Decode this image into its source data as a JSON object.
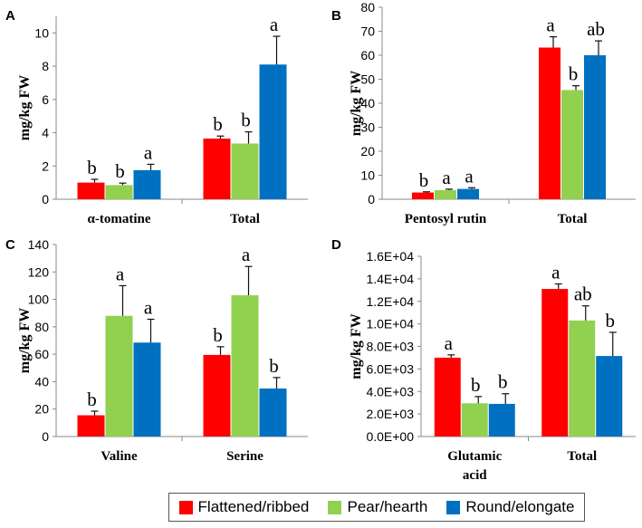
{
  "colors": {
    "flattened": "#ff0000",
    "pear": "#92d050",
    "round": "#0070c0"
  },
  "legend": {
    "items": [
      {
        "label": "Flattened/ribbed",
        "color": "#ff0000"
      },
      {
        "label": "Pear/hearth",
        "color": "#92d050"
      },
      {
        "label": "Round/elongate",
        "color": "#0070c0"
      }
    ]
  },
  "chart_data": [
    {
      "panel": "A",
      "type": "bar",
      "ylabel": "mg/kg FW",
      "ylim": [
        0,
        11
      ],
      "yticks": [
        0,
        2,
        4,
        6,
        8,
        10
      ],
      "ytick_labels": [
        "0",
        "2",
        "4",
        "6",
        "8",
        "10"
      ],
      "categories": [
        "α-tomatine",
        "Total"
      ],
      "series": [
        {
          "name": "Flattened/ribbed",
          "values": [
            1.0,
            3.65
          ],
          "errors": [
            0.2,
            0.15
          ],
          "letters": [
            "b",
            "b"
          ]
        },
        {
          "name": "Pear/hearth",
          "values": [
            0.85,
            3.35
          ],
          "errors": [
            0.12,
            0.7
          ],
          "letters": [
            "b",
            "b"
          ]
        },
        {
          "name": "Round/elongate",
          "values": [
            1.75,
            8.1
          ],
          "errors": [
            0.35,
            1.7
          ],
          "letters": [
            "a",
            "a"
          ]
        }
      ]
    },
    {
      "panel": "B",
      "type": "bar",
      "ylabel": "mg/kg FW",
      "ylim": [
        0,
        80
      ],
      "yticks": [
        0,
        10,
        20,
        30,
        40,
        50,
        60,
        70,
        80
      ],
      "ytick_labels": [
        "0",
        "10",
        "20",
        "30",
        "40",
        "50",
        "60",
        "70",
        "80"
      ],
      "categories": [
        "Pentosyl rutin",
        "Total"
      ],
      "series": [
        {
          "name": "Flattened/ribbed",
          "values": [
            2.8,
            63.2
          ],
          "errors": [
            0.3,
            4.5
          ],
          "letters": [
            "b",
            "a"
          ]
        },
        {
          "name": "Pear/hearth",
          "values": [
            3.8,
            45.5
          ],
          "errors": [
            0.4,
            1.8
          ],
          "letters": [
            "a",
            "b"
          ]
        },
        {
          "name": "Round/elongate",
          "values": [
            4.3,
            60.0
          ],
          "errors": [
            0.5,
            6.0
          ],
          "letters": [
            "a",
            "ab"
          ]
        }
      ]
    },
    {
      "panel": "C",
      "type": "bar",
      "ylabel": "mg/kg FW",
      "ylim": [
        0,
        140
      ],
      "yticks": [
        0,
        20,
        40,
        60,
        80,
        100,
        120,
        140
      ],
      "ytick_labels": [
        "0",
        "20",
        "40",
        "60",
        "80",
        "100",
        "120",
        "140"
      ],
      "categories": [
        "Valine",
        "Serine"
      ],
      "series": [
        {
          "name": "Flattened/ribbed",
          "values": [
            15.5,
            59.5
          ],
          "errors": [
            3.0,
            6.0
          ],
          "letters": [
            "b",
            "b"
          ]
        },
        {
          "name": "Pear/hearth",
          "values": [
            88.0,
            103.0
          ],
          "errors": [
            22.0,
            21.0
          ],
          "letters": [
            "a",
            "a"
          ]
        },
        {
          "name": "Round/elongate",
          "values": [
            68.5,
            35.0
          ],
          "errors": [
            17.0,
            8.0
          ],
          "letters": [
            "a",
            "b"
          ]
        }
      ]
    },
    {
      "panel": "D",
      "type": "bar",
      "ylabel": "mg/kg FW",
      "ylim": [
        0,
        16000
      ],
      "yticks": [
        0,
        2000,
        4000,
        6000,
        8000,
        10000,
        12000,
        14000,
        16000
      ],
      "ytick_labels": [
        "0.0E+00",
        "2.0E+03",
        "4.0E+03",
        "6.0E+03",
        "8.0E+03",
        "1.0E+04",
        "1.2E+04",
        "1.4E+04",
        "1.6E+04"
      ],
      "categories": [
        "Glutamic acid",
        "Total"
      ],
      "category_lines": [
        [
          "Glutamic",
          "acid"
        ],
        [
          "Total"
        ]
      ],
      "series": [
        {
          "name": "Flattened/ribbed",
          "values": [
            7000,
            13100
          ],
          "errors": [
            250,
            450
          ],
          "letters": [
            "a",
            "a"
          ]
        },
        {
          "name": "Pear/hearth",
          "values": [
            2950,
            10300
          ],
          "errors": [
            600,
            1300
          ],
          "letters": [
            "b",
            "ab"
          ]
        },
        {
          "name": "Round/elongate",
          "values": [
            2900,
            7150
          ],
          "errors": [
            900,
            2100
          ],
          "letters": [
            "b",
            "b"
          ]
        }
      ]
    }
  ]
}
